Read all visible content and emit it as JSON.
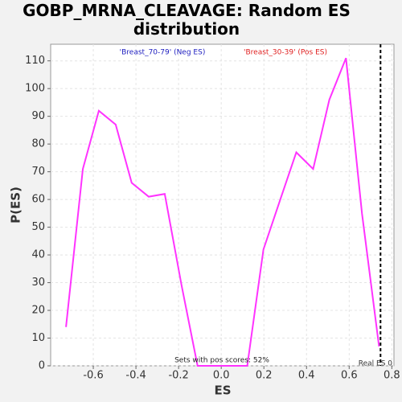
{
  "chart_data": {
    "type": "line",
    "title": "GOBP_MRNA_CLEAVAGE: Random ES distribution",
    "xlabel": "ES",
    "ylabel": "P(ES)",
    "x": [
      -0.728,
      -0.649,
      -0.574,
      -0.495,
      -0.42,
      -0.34,
      -0.265,
      -0.186,
      -0.111,
      -0.03,
      0.043,
      0.122,
      0.198,
      0.277,
      0.352,
      0.431,
      0.507,
      0.585,
      0.66,
      0.74
    ],
    "series": [
      {
        "name": "Random ES",
        "color": "#ff33ff",
        "values": [
          14,
          71,
          92,
          87,
          66,
          61,
          62,
          29,
          0,
          0,
          0,
          0,
          42,
          60,
          77,
          71,
          96,
          111,
          55,
          7
        ]
      }
    ],
    "xlim": [
      -0.8,
      0.81
    ],
    "ylim": [
      0,
      116
    ],
    "xticks": [
      -0.6,
      -0.4,
      -0.2,
      {
        "value": 0,
        "label": "0.0"
      },
      0.2,
      0.4,
      0.6,
      0.8
    ],
    "yticks": [
      0,
      10,
      20,
      30,
      40,
      50,
      60,
      70,
      80,
      90,
      100,
      110
    ],
    "grid": true,
    "neg_label": "'Breast_70-79' (Neg ES)",
    "neg_color": "#2020c0",
    "pos_label": "'Breast_30-39' (Pos ES)",
    "pos_color": "#e02020",
    "pos_note": "Sets with pos scores: 52%",
    "real_es": 0.747,
    "real_es_label": "Real ES 0"
  }
}
